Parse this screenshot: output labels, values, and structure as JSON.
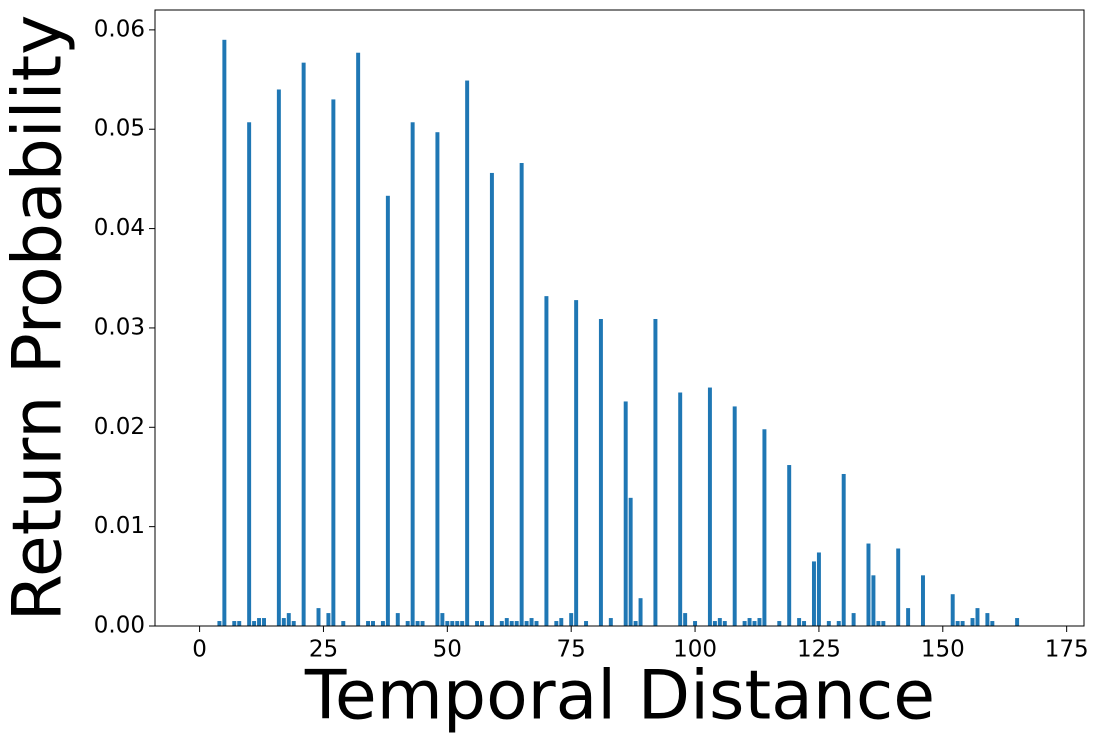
{
  "chart_data": {
    "type": "bar",
    "x_label": "Temporal Distance",
    "y_label": "Return Probability",
    "color": "#1f77b4",
    "x": [
      4,
      5,
      7,
      8,
      10,
      11,
      12,
      13,
      16,
      17,
      18,
      19,
      21,
      24,
      26,
      27,
      29,
      32,
      34,
      35,
      37,
      38,
      40,
      42,
      43,
      44,
      45,
      48,
      49,
      50,
      51,
      52,
      53,
      54,
      56,
      57,
      59,
      61,
      62,
      63,
      64,
      65,
      66,
      67,
      68,
      70,
      72,
      73,
      75,
      76,
      78,
      81,
      83,
      86,
      87,
      88,
      89,
      92,
      97,
      98,
      100,
      103,
      104,
      105,
      106,
      108,
      110,
      111,
      112,
      113,
      114,
      117,
      119,
      121,
      122,
      124,
      125,
      127,
      129,
      130,
      132,
      135,
      136,
      137,
      138,
      141,
      143,
      146,
      152,
      153,
      154,
      156,
      157,
      159,
      160,
      165
    ],
    "values": [
      0.0005,
      0.059,
      0.0005,
      0.0005,
      0.0507,
      0.0005,
      0.0008,
      0.0008,
      0.054,
      0.0008,
      0.0013,
      0.0005,
      0.0567,
      0.0018,
      0.0013,
      0.053,
      0.0005,
      0.0577,
      0.0005,
      0.0005,
      0.0005,
      0.0433,
      0.0013,
      0.0005,
      0.0507,
      0.0005,
      0.0005,
      0.0497,
      0.0013,
      0.0005,
      0.0005,
      0.0005,
      0.0005,
      0.0549,
      0.0005,
      0.0005,
      0.0456,
      0.0005,
      0.0008,
      0.0005,
      0.0005,
      0.0466,
      0.0005,
      0.0008,
      0.0005,
      0.0332,
      0.0005,
      0.0008,
      0.0013,
      0.0328,
      0.0005,
      0.0309,
      0.0008,
      0.0226,
      0.0129,
      0.0005,
      0.0028,
      0.0309,
      0.0235,
      0.0013,
      0.0005,
      0.024,
      0.0005,
      0.0008,
      0.0005,
      0.0221,
      0.0005,
      0.0008,
      0.0005,
      0.0008,
      0.0198,
      0.0005,
      0.0162,
      0.0008,
      0.0005,
      0.0065,
      0.0074,
      0.0005,
      0.0005,
      0.0153,
      0.0013,
      0.0083,
      0.0051,
      0.0005,
      0.0005,
      0.0078,
      0.0018,
      0.0051,
      0.0032,
      0.0005,
      0.0005,
      0.0008,
      0.0018,
      0.0013,
      0.0005,
      0.0008
    ],
    "xlim": [
      -9,
      178.5
    ],
    "ylim": [
      0,
      0.062
    ],
    "xticks": [
      0,
      25,
      50,
      75,
      100,
      125,
      150,
      175
    ],
    "yticks": [
      {
        "value": 0,
        "label": "0.00"
      },
      {
        "value": 0.01,
        "label": "0.01"
      },
      {
        "value": 0.02,
        "label": "0.02"
      },
      {
        "value": 0.03,
        "label": "0.03"
      },
      {
        "value": 0.04,
        "label": "0.04"
      },
      {
        "value": 0.05,
        "label": "0.05"
      },
      {
        "value": 0.06,
        "label": "0.06"
      }
    ]
  }
}
